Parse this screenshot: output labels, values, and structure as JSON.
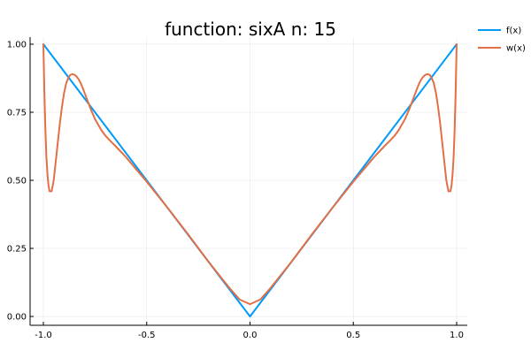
{
  "chart_data": {
    "type": "line",
    "title": "function: sixA n: 15",
    "xlabel": "",
    "ylabel": "",
    "xlim": [
      -1.0,
      1.0
    ],
    "ylim": [
      0.0,
      1.0
    ],
    "x_ticks": [
      -1.0,
      -0.5,
      0.0,
      0.5,
      1.0
    ],
    "x_tick_labels": [
      "-1.0",
      "-0.5",
      "0.0",
      "0.5",
      "1.0"
    ],
    "y_ticks": [
      0.0,
      0.25,
      0.5,
      0.75,
      1.0
    ],
    "y_tick_labels": [
      "0.00",
      "0.25",
      "0.50",
      "0.75",
      "1.00"
    ],
    "grid": true,
    "legend_position": "top-right, outside plot",
    "series": [
      {
        "name": "f(x)",
        "color": "#009AFA",
        "x": [
          -1.0,
          0.0,
          1.0
        ],
        "y": [
          1.0,
          0.0,
          1.0
        ]
      },
      {
        "name": "w(x)",
        "color": "#E26F46",
        "x": [
          -1.0,
          -0.995,
          -0.99,
          -0.985,
          -0.98,
          -0.975,
          -0.97,
          -0.96,
          -0.95,
          -0.94,
          -0.93,
          -0.92,
          -0.91,
          -0.9,
          -0.89,
          -0.88,
          -0.87,
          -0.86,
          -0.85,
          -0.84,
          -0.83,
          -0.82,
          -0.81,
          -0.8,
          -0.79,
          -0.78,
          -0.77,
          -0.75,
          -0.72,
          -0.7,
          -0.68,
          -0.65,
          -0.6,
          -0.55,
          -0.5,
          -0.4,
          -0.3,
          -0.2,
          -0.1,
          -0.05,
          0.0,
          0.05,
          0.1,
          0.2,
          0.3,
          0.4,
          0.5,
          0.55,
          0.6,
          0.65,
          0.68,
          0.7,
          0.72,
          0.75,
          0.77,
          0.78,
          0.79,
          0.8,
          0.81,
          0.82,
          0.83,
          0.84,
          0.85,
          0.86,
          0.87,
          0.88,
          0.89,
          0.9,
          0.91,
          0.92,
          0.93,
          0.94,
          0.95,
          0.96,
          0.97,
          0.975,
          0.98,
          0.985,
          0.99,
          0.995,
          1.0
        ],
        "y": [
          1.0,
          0.82,
          0.68,
          0.58,
          0.52,
          0.48,
          0.46,
          0.46,
          0.5,
          0.57,
          0.64,
          0.71,
          0.77,
          0.82,
          0.855,
          0.875,
          0.887,
          0.89,
          0.888,
          0.882,
          0.872,
          0.858,
          0.84,
          0.82,
          0.8,
          0.78,
          0.76,
          0.725,
          0.685,
          0.664,
          0.648,
          0.625,
          0.585,
          0.54,
          0.495,
          0.4,
          0.302,
          0.2,
          0.105,
          0.062,
          0.045,
          0.062,
          0.105,
          0.2,
          0.302,
          0.4,
          0.495,
          0.54,
          0.585,
          0.625,
          0.648,
          0.664,
          0.685,
          0.725,
          0.76,
          0.78,
          0.8,
          0.82,
          0.84,
          0.858,
          0.872,
          0.882,
          0.888,
          0.89,
          0.887,
          0.875,
          0.855,
          0.82,
          0.77,
          0.71,
          0.64,
          0.57,
          0.5,
          0.46,
          0.46,
          0.48,
          0.52,
          0.58,
          0.68,
          0.82,
          1.0
        ]
      }
    ]
  }
}
